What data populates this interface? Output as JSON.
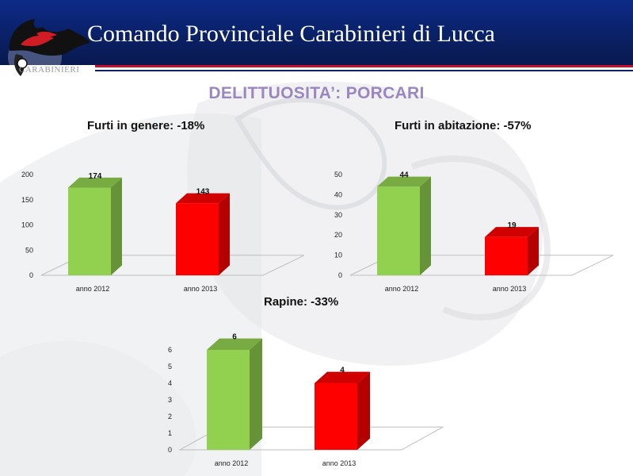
{
  "header": {
    "title": "Comando Provinciale Carabinieri di Lucca",
    "logo_caption": "CARABINIERI",
    "background_color": "#0a2166",
    "rule_color": "#c8102e"
  },
  "slide_title": "DELITTUOSITA’: PORCARI",
  "icons": {
    "logo": "carabinieri-flame-emblem-icon"
  },
  "chart_data": [
    {
      "type": "bar",
      "title": "Furti in genere: -18%",
      "categories": [
        "anno 2012",
        "anno 2013"
      ],
      "values": [
        174,
        143
      ],
      "data_labels": [
        "174",
        "143"
      ],
      "ylim": [
        0,
        200
      ],
      "yticks": [
        0,
        50,
        100,
        150,
        200
      ],
      "colors": [
        "#92d050",
        "#ff0000"
      ],
      "grid": false,
      "legend": "none",
      "xlabel": "",
      "ylabel": ""
    },
    {
      "type": "bar",
      "title": "Furti in abitazione: -57%",
      "categories": [
        "anno 2012",
        "anno 2013"
      ],
      "values": [
        44,
        19
      ],
      "data_labels": [
        "44",
        "19"
      ],
      "ylim": [
        0,
        50
      ],
      "yticks": [
        0,
        10,
        20,
        30,
        40,
        50
      ],
      "colors": [
        "#92d050",
        "#ff0000"
      ],
      "grid": false,
      "legend": "none",
      "xlabel": "",
      "ylabel": ""
    },
    {
      "type": "bar",
      "title": "Rapine: -33%",
      "categories": [
        "anno 2012",
        "anno 2013"
      ],
      "values": [
        6,
        4
      ],
      "data_labels": [
        "6",
        "4"
      ],
      "ylim": [
        0,
        6
      ],
      "yticks": [
        0,
        1,
        2,
        3,
        4,
        5,
        6
      ],
      "colors": [
        "#92d050",
        "#ff0000"
      ],
      "grid": false,
      "legend": "none",
      "xlabel": "",
      "ylabel": ""
    }
  ]
}
